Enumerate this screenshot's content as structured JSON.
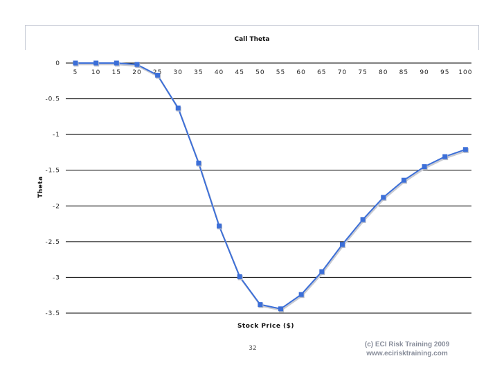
{
  "chart_data": {
    "type": "line",
    "title": "Call Theta",
    "xlabel": "Stock Price ($)",
    "ylabel": "Theta",
    "categories": [
      "5",
      "10",
      "15",
      "20",
      "25",
      "30",
      "35",
      "40",
      "45",
      "50",
      "55",
      "60",
      "65",
      "70",
      "75",
      "80",
      "85",
      "90",
      "95",
      "100"
    ],
    "y_ticks": [
      "0",
      "-0.5",
      "-1",
      "-1.5",
      "-2",
      "-2.5",
      "-3",
      "-3.5"
    ],
    "ylim": [
      -3.5,
      0
    ],
    "grid": true,
    "series": [
      {
        "values": [
          0,
          0,
          0,
          -0.02,
          -0.17,
          -0.63,
          -1.4,
          -2.28,
          -2.99,
          -3.38,
          -3.44,
          -3.24,
          -2.92,
          -2.54,
          -2.19,
          -1.88,
          -1.64,
          -1.45,
          -1.31,
          -1.21
        ],
        "color": "#3c6fd8",
        "marker": "square"
      }
    ]
  },
  "footer": {
    "page_number": "32",
    "copyright_line1": "(c) ECI Risk Training 2009",
    "copyright_line2": "www.ecirisktraining.com"
  }
}
